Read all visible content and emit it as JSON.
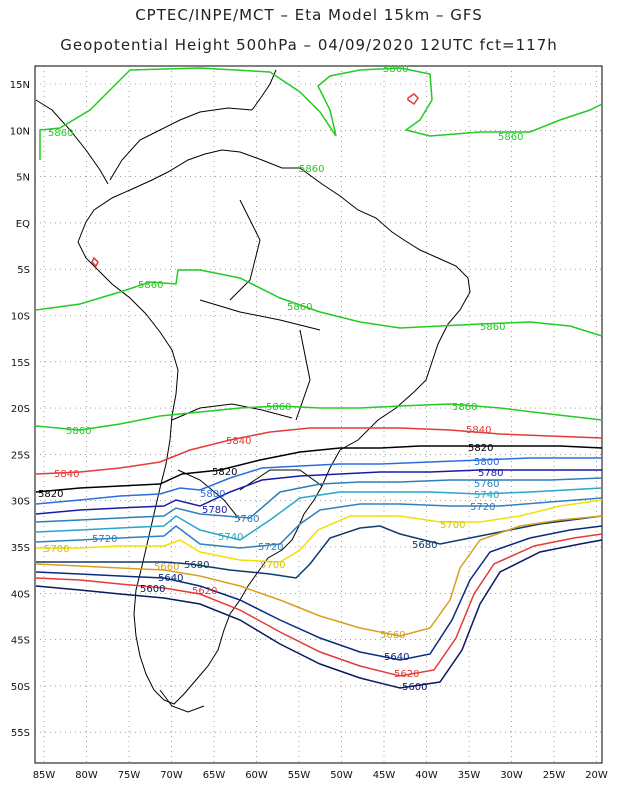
{
  "header": {
    "line1": "CPTEC/INPE/MCT – Eta Model 15km – GFS",
    "line2": "Geopotential Height 500hPa – 04/09/2020 12UTC fct=117h"
  },
  "axes": {
    "lon_ticks": [
      "85W",
      "80W",
      "75W",
      "70W",
      "65W",
      "60W",
      "55W",
      "50W",
      "45W",
      "40W",
      "35W",
      "30W",
      "25W",
      "20W"
    ],
    "lat_ticks": [
      "15N",
      "10N",
      "5N",
      "EQ",
      "5S",
      "10S",
      "15S",
      "20S",
      "25S",
      "30S",
      "35S",
      "40S",
      "45S",
      "50S",
      "55S"
    ]
  },
  "contours": [
    {
      "value": "5860",
      "color": "#22cc22"
    },
    {
      "value": "5840",
      "color": "#e53a3a"
    },
    {
      "value": "5820",
      "color": "#000000"
    },
    {
      "value": "5800",
      "color": "#2a6fe0"
    },
    {
      "value": "5780",
      "color": "#1a1aa8"
    },
    {
      "value": "5760",
      "color": "#2d7fb8"
    },
    {
      "value": "5740",
      "color": "#2aa6c8"
    },
    {
      "value": "5720",
      "color": "#3080c0"
    },
    {
      "value": "5700",
      "color": "#f2e000"
    },
    {
      "value": "5680",
      "color": "#103a6a"
    },
    {
      "value": "5660",
      "color": "#d8a020"
    },
    {
      "value": "5640",
      "color": "#0a2a80"
    },
    {
      "value": "5620",
      "color": "#e53a3a"
    },
    {
      "value": "5600",
      "color": "#0a1a60"
    }
  ]
}
